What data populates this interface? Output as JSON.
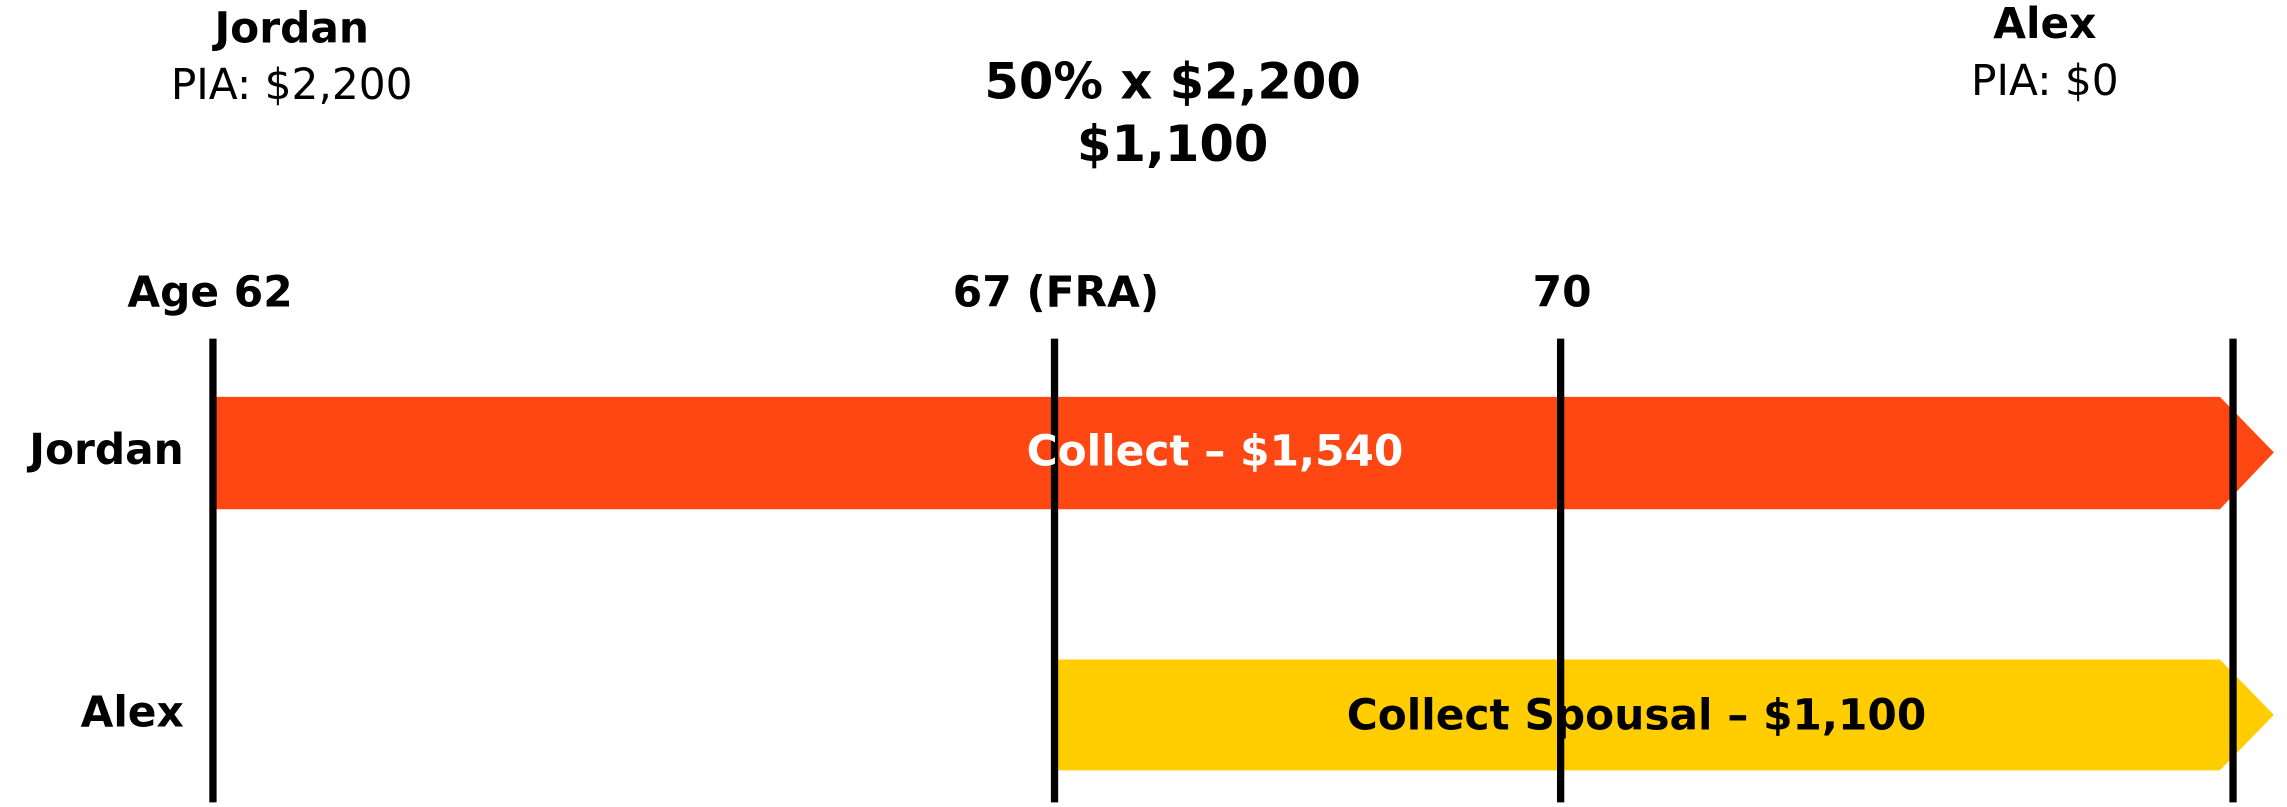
{
  "header": {
    "left": {
      "name": "Jordan",
      "pia": "PIA: $2,200"
    },
    "center": {
      "formula": "50% x $2,200",
      "result": "$1,100"
    },
    "right": {
      "name": "Alex",
      "pia": "PIA: $0"
    }
  },
  "ages": [
    "Age 62",
    "67 (FRA)",
    "70"
  ],
  "rows": [
    {
      "label": "Jordan",
      "bar": "Collect – $1,540"
    },
    {
      "label": "Alex",
      "bar": "Collect Spousal – $1,100"
    }
  ]
}
